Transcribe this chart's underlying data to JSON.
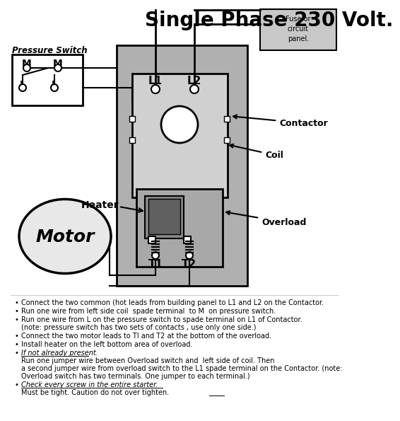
{
  "title": "Single Phase 230 Volt.",
  "bg_color": "#ffffff",
  "diagram_bg": "#b0b0b0",
  "contactor_inner_bg": "#d0d0d0",
  "overload_bg": "#a8a8a8",
  "fuse_bg": "#c8c8c8",
  "ps_bg": "#ffffff",
  "motor_bg": "#e8e8e8",
  "fuse_text": [
    "Fuse or",
    "circuit",
    "panel."
  ],
  "ps_label": "Pressure Switch",
  "contactor_label": "Contactor",
  "coil_label": "Coil",
  "overload_label": "Overload",
  "heater_label": "Heater",
  "motor_label": "Motor",
  "L1_label": "L1",
  "L2_label": "L2",
  "T1_label": "T1",
  "T2_label": "T2",
  "bullet_texts": [
    "Connect the two common (hot leads from building panel to L1 and L2 on the Contactor.",
    "Run one wire from left side coil  spade terminal  to M  on pressure switch.",
    "Run one wire from L on the pressure switch to spade terminal on L1 of Contactor.\n(note: pressure switch has two sets of contacts , use only one side.)",
    "Connect the two motor leads to TI and T2 at the bottom of the overload.",
    "Install heater on the left bottom area of overload.",
    "If not already present. Run one jumper wire between Overload switch and  left side of coil. Then a second jumper wire from overload switch to the L1 spade terminal on the Contactor. (note: Overload switch has two terminals. One jumper to each terminal.)",
    "Check every screw in the entire starter. Must be tight. Caution do not over tighten."
  ]
}
